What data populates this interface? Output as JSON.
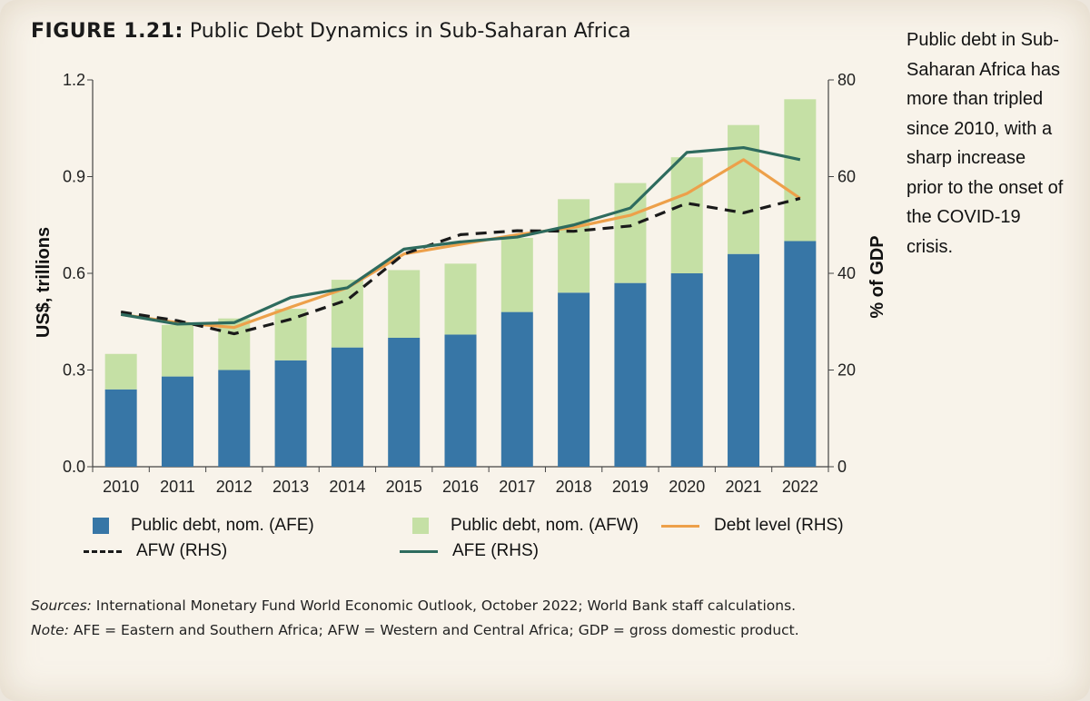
{
  "figure": {
    "number": "FIGURE 1.21:",
    "title": "Public Debt Dynamics in Sub-Saharan Africa"
  },
  "side_note": "Public debt in Sub-Saharan Africa has more than tripled since 2010, with a sharp increase prior to the onset of the COVID-19 crisis.",
  "legend": {
    "afe_bar": "Public debt, nom. (AFE)",
    "afw_bar": "Public debt, nom. (AFW)",
    "debt_level": "Debt level (RHS)",
    "afw_line": "AFW (RHS)",
    "afe_line": "AFE (RHS)"
  },
  "notes": {
    "sources_label": "Sources:",
    "sources_text": " International Monetary Fund World Economic Outlook, October 2022; World Bank staff calculations.",
    "note_label": "Note:",
    "note_text": " AFE = Eastern and Southern Africa; AFW = Western and Central Africa; GDP = gross domestic product."
  },
  "chart_data": {
    "type": "bar",
    "categories": [
      "2010",
      "2011",
      "2012",
      "2013",
      "2014",
      "2015",
      "2016",
      "2017",
      "2018",
      "2019",
      "2020",
      "2021",
      "2022"
    ],
    "ylabel": "US$, trillions",
    "y2label": "% of GDP",
    "ylim": [
      0,
      1.2
    ],
    "y2lim": [
      0,
      80
    ],
    "yticks": [
      "0.0",
      "0.3",
      "0.6",
      "0.9",
      "1.2"
    ],
    "y2ticks": [
      "0",
      "20",
      "40",
      "60",
      "80"
    ],
    "stacked": true,
    "series": [
      {
        "name": "Public debt, nom. (AFE)",
        "kind": "bar",
        "axis": "left",
        "color": "#3776a6",
        "values": [
          0.24,
          0.28,
          0.3,
          0.33,
          0.37,
          0.4,
          0.41,
          0.48,
          0.54,
          0.57,
          0.6,
          0.66,
          0.7
        ]
      },
      {
        "name": "Public debt, nom. (AFW)",
        "kind": "bar",
        "axis": "left",
        "color": "#c5e0a5",
        "values": [
          0.11,
          0.16,
          0.16,
          0.16,
          0.21,
          0.21,
          0.22,
          0.23,
          0.29,
          0.31,
          0.36,
          0.4,
          0.44
        ]
      },
      {
        "name": "Debt level (RHS)",
        "kind": "line",
        "axis": "right",
        "color": "#eda04a",
        "values": [
          31.5,
          29.8,
          28.8,
          33.0,
          37.0,
          44.0,
          46.0,
          48.0,
          49.5,
          52.0,
          56.5,
          63.5,
          55.5
        ]
      },
      {
        "name": "AFW (RHS)",
        "kind": "line",
        "axis": "right",
        "color": "#1a1a1a",
        "dash": true,
        "values": [
          32.0,
          30.2,
          27.5,
          30.5,
          34.5,
          44.0,
          48.0,
          48.8,
          48.7,
          49.8,
          54.5,
          52.5,
          55.5
        ]
      },
      {
        "name": "AFE (RHS)",
        "kind": "line",
        "axis": "right",
        "color": "#2e6b5e",
        "values": [
          31.5,
          29.5,
          29.8,
          35.0,
          37.0,
          45.0,
          46.5,
          47.5,
          50.0,
          53.5,
          65.0,
          66.0,
          63.5
        ]
      }
    ],
    "legend": "bottom",
    "grid": false
  }
}
